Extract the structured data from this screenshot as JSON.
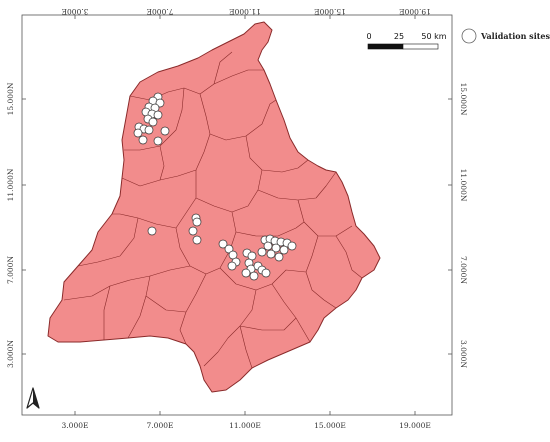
{
  "map": {
    "legend": {
      "label": "Validation sites"
    },
    "scale_bar": {
      "labels": [
        "0",
        "25",
        "50 km"
      ]
    },
    "x_ticks": [
      "3.000E",
      "7.000E",
      "11.000E",
      "15.000E",
      "19.000E"
    ],
    "y_ticks": [
      "15.000N",
      "11.000N",
      "7.000N",
      "3.000N"
    ],
    "colors": {
      "region_fill": "#f28c8c",
      "boundary": "#8a2a2a",
      "site_marker": "#ffffff"
    },
    "north_arrow": "north-arrow-icon"
  }
}
